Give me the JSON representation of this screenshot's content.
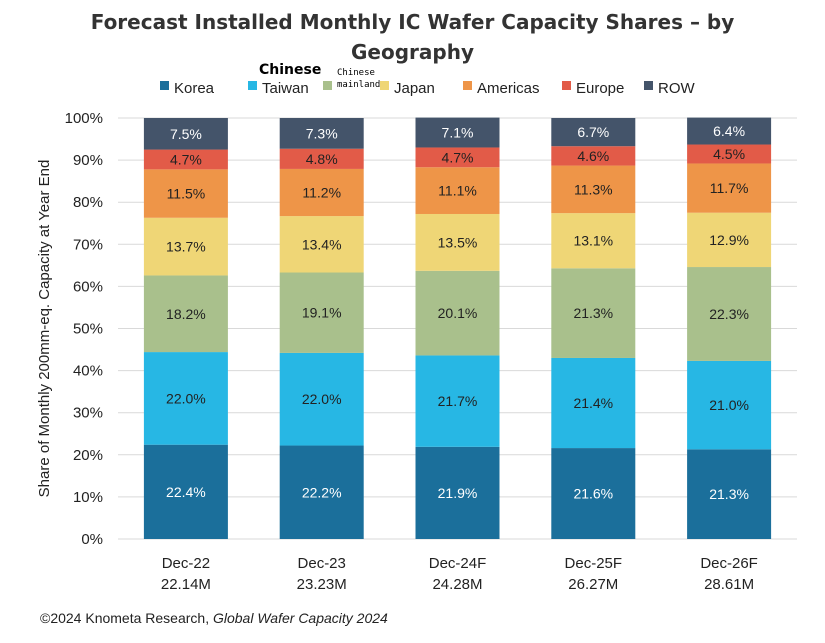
{
  "chart_data": {
    "type": "bar",
    "stacked": true,
    "title": "Forecast Installed Monthly IC Wafer Capacity Shares – by Geography",
    "title_lines": [
      "Forecast Installed Monthly IC Wafer Capacity Shares – by",
      "Geography"
    ],
    "ylabel": "Share of Monthly 200mm-eq. Capacity at Year End",
    "ylim": [
      0,
      100
    ],
    "yticks": [
      "0%",
      "10%",
      "20%",
      "30%",
      "40%",
      "50%",
      "60%",
      "70%",
      "80%",
      "90%",
      "100%"
    ],
    "categories": [
      "Dec-22",
      "Dec-23",
      "Dec-24F",
      "Dec-25F",
      "Dec-26F"
    ],
    "category_totals": [
      "22.14M",
      "23.23M",
      "24.28M",
      "26.27M",
      "28.61M"
    ],
    "legend_position": "top",
    "grid": true,
    "series": [
      {
        "name": "Korea",
        "color": "#1b6f9b",
        "values": [
          22.4,
          22.2,
          21.9,
          21.6,
          21.3
        ],
        "labels": [
          "22.4%",
          "22.2%",
          "21.9%",
          "21.6%",
          "21.3%"
        ]
      },
      {
        "name": "Taiwan",
        "color": "#27b7e4",
        "values": [
          22.0,
          22.0,
          21.7,
          21.4,
          21.0
        ],
        "labels": [
          "22.0%",
          "22.0%",
          "21.7%",
          "21.4%",
          "21.0%"
        ]
      },
      {
        "name": "",
        "color": "#a9c08c",
        "values": [
          18.2,
          19.1,
          20.1,
          21.3,
          22.3
        ],
        "labels": [
          "18.2%",
          "19.1%",
          "20.1%",
          "21.3%",
          "22.3%"
        ]
      },
      {
        "name": "Japan",
        "color": "#efd676",
        "values": [
          13.7,
          13.4,
          13.5,
          13.1,
          12.9
        ],
        "labels": [
          "13.7%",
          "13.4%",
          "13.5%",
          "13.1%",
          "12.9%"
        ]
      },
      {
        "name": "Americas",
        "color": "#ee9548",
        "values": [
          11.5,
          11.2,
          11.1,
          11.3,
          11.7
        ],
        "labels": [
          "11.5%",
          "11.2%",
          "11.1%",
          "11.3%",
          "11.7%"
        ]
      },
      {
        "name": "Europe",
        "color": "#e25b48",
        "values": [
          4.7,
          4.8,
          4.7,
          4.6,
          4.5
        ],
        "labels": [
          "4.7%",
          "4.8%",
          "4.7%",
          "4.6%",
          "4.5%"
        ]
      },
      {
        "name": "ROW",
        "color": "#44546a",
        "values": [
          7.5,
          7.3,
          7.1,
          6.7,
          6.4
        ],
        "labels": [
          "7.5%",
          "7.3%",
          "7.1%",
          "6.7%",
          "6.4%"
        ]
      }
    ],
    "light_label_series": [
      "Korea",
      "ROW"
    ]
  },
  "annotations": {
    "chinese": "Chinese",
    "chinese_mainland": [
      "Chinese",
      "mainland"
    ]
  },
  "footer": {
    "source": "©2024 Knometa Research, ",
    "report": "Global Wafer Capacity 2024"
  }
}
